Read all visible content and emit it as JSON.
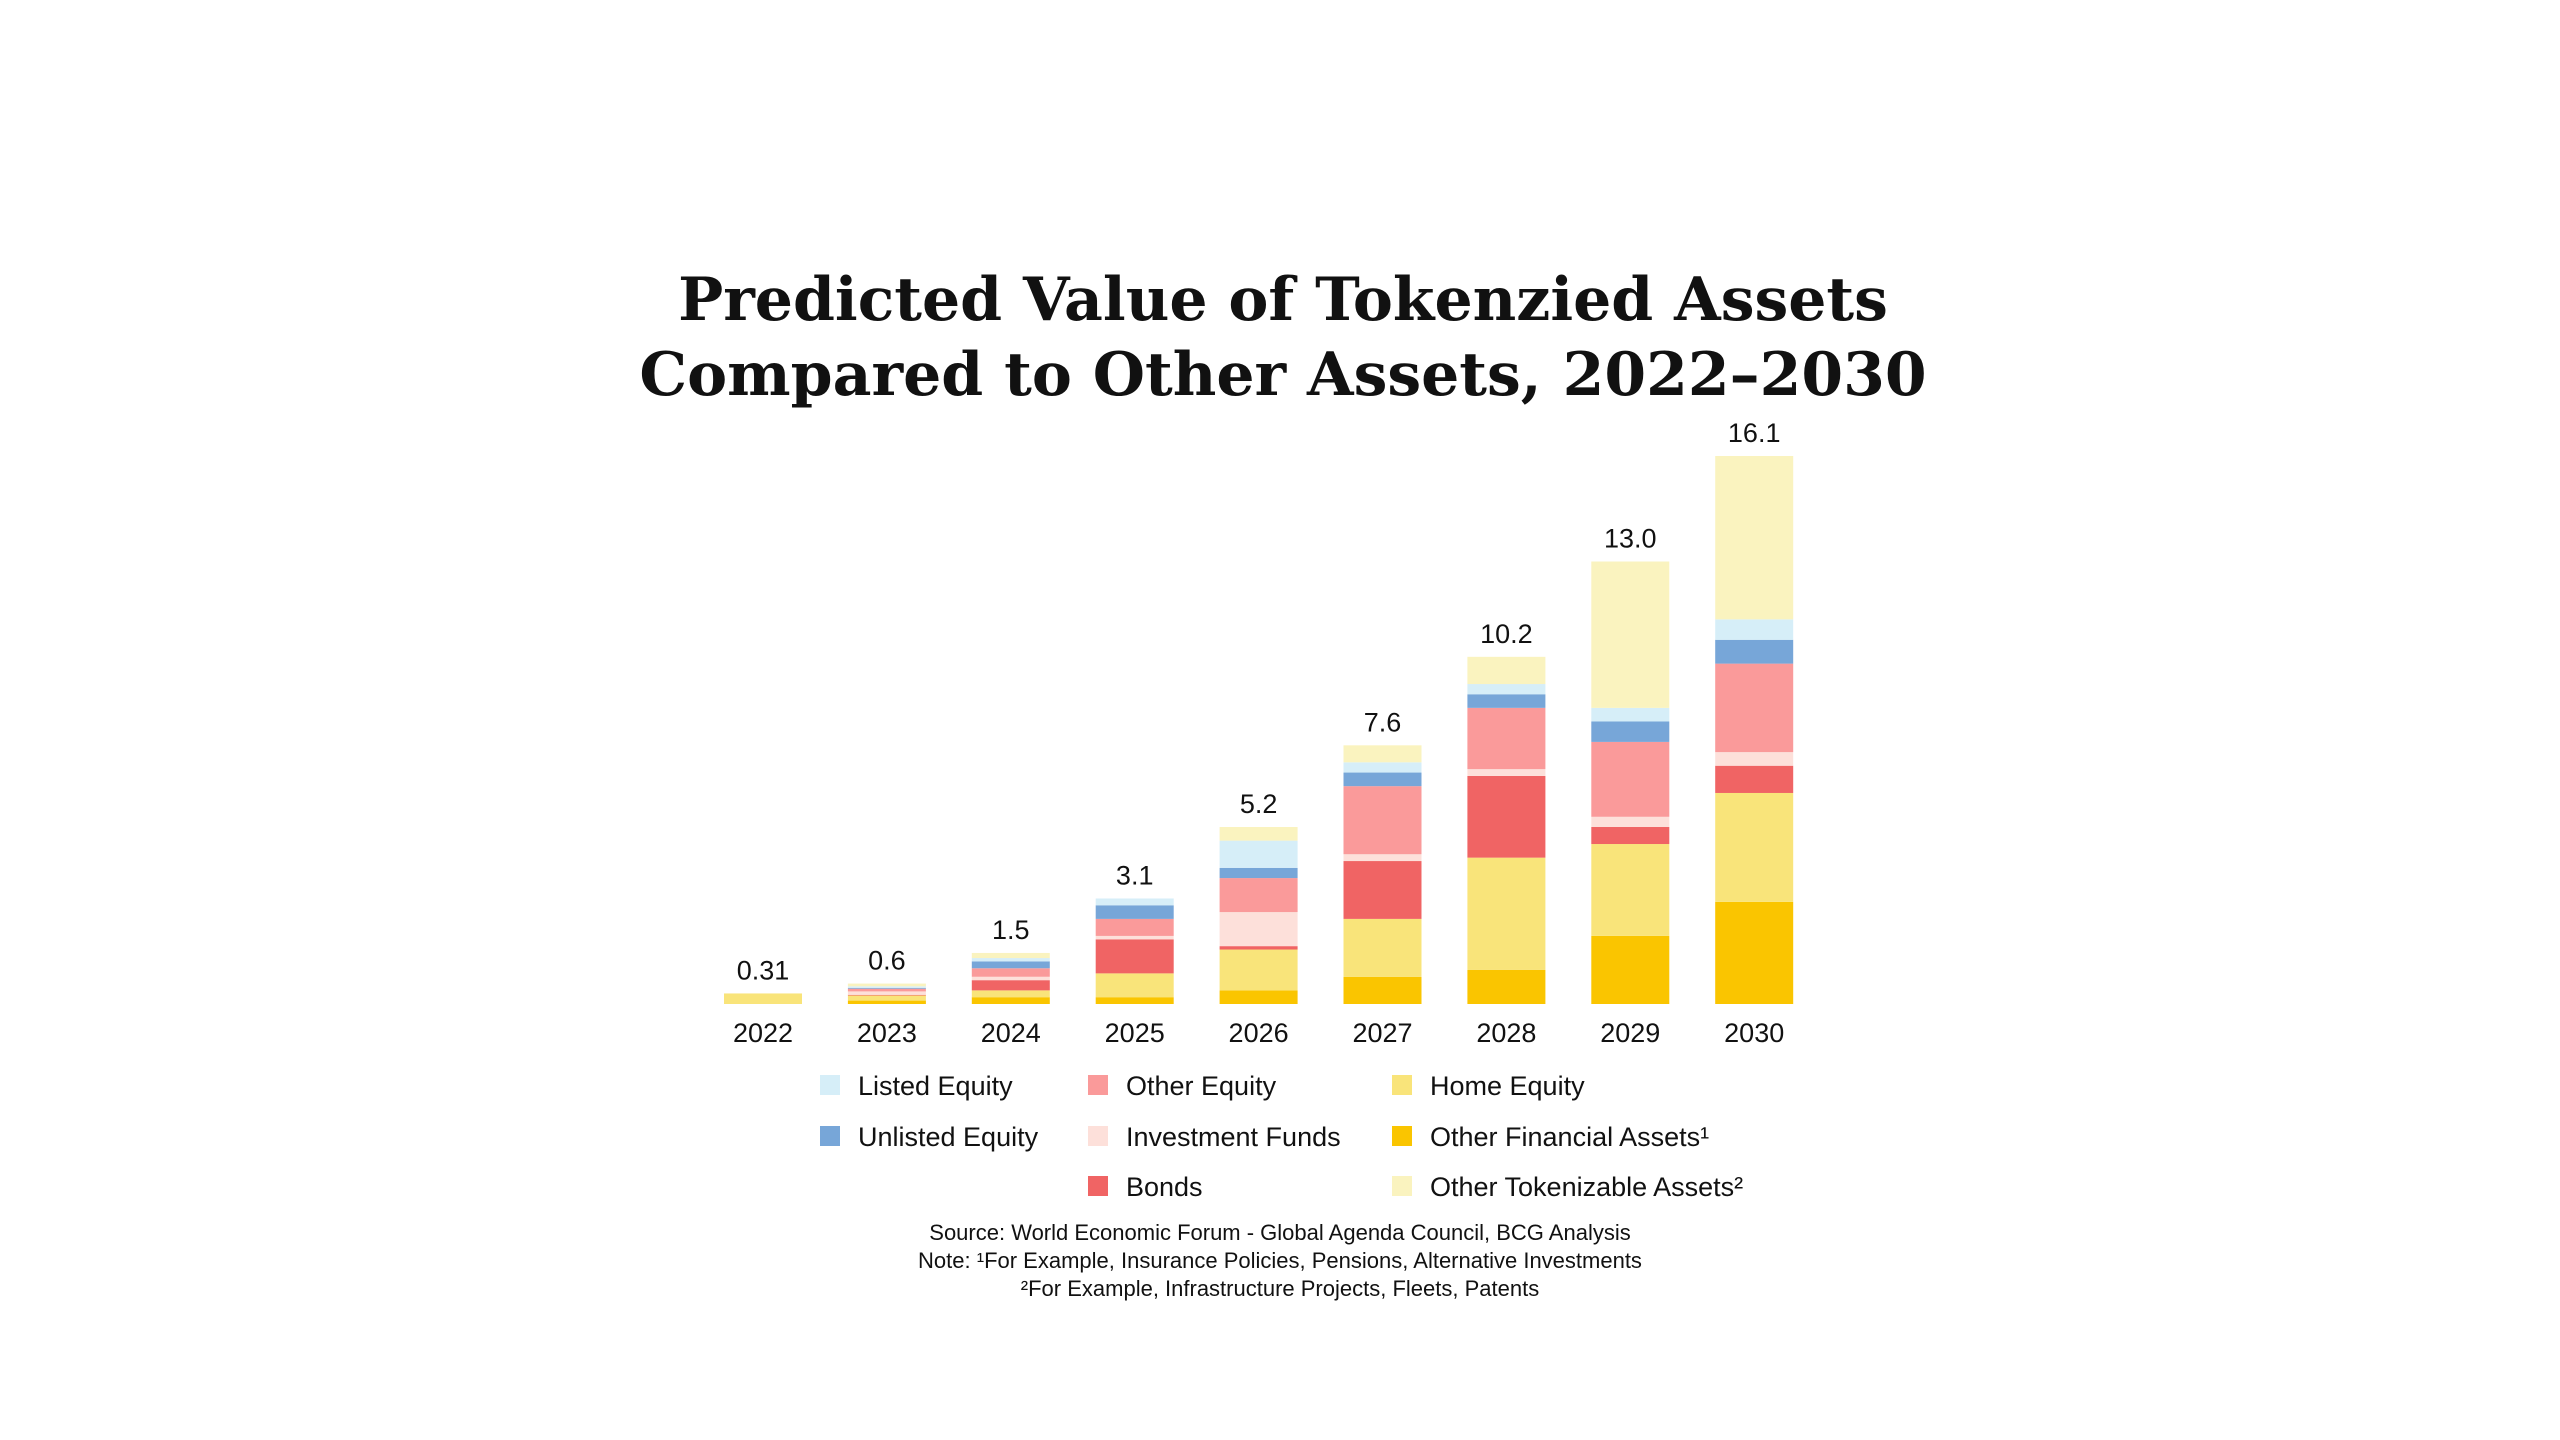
{
  "chart_data": {
    "type": "bar",
    "stacked": true,
    "title": "Predicted Value of Tokenzied Assets Compared to Other Assets, 2022–2030",
    "title_lines": [
      "Predicted Value of Tokenzied Assets",
      "Compared to Other Assets, 2022–2030"
    ],
    "categories": [
      "2022",
      "2023",
      "2024",
      "2025",
      "2026",
      "2027",
      "2028",
      "2029",
      "2030"
    ],
    "totals": [
      "0.31",
      "0.6",
      "1.5",
      "3.1",
      "5.2",
      "7.6",
      "10.2",
      "13.0",
      "16.1"
    ],
    "ylim": [
      0,
      16.1
    ],
    "grid": false,
    "legend_position": "bottom",
    "series": [
      {
        "name": "Other Financial Assets¹",
        "color": "#fac500",
        "values": [
          0,
          0.1,
          0.2,
          0.2,
          0.4,
          0.8,
          1.0,
          2.0,
          3.0
        ]
      },
      {
        "name": "Home Equity",
        "color": "#f9e47a",
        "values": [
          0.31,
          0.15,
          0.2,
          0.7,
          1.2,
          1.7,
          3.3,
          2.7,
          3.2
        ]
      },
      {
        "name": "Bonds",
        "color": "#f06464",
        "values": [
          0,
          0.02,
          0.3,
          1.0,
          0.1,
          1.7,
          2.4,
          0.5,
          0.8
        ]
      },
      {
        "name": "Investment Funds",
        "color": "#fde0da",
        "values": [
          0,
          0.1,
          0.1,
          0.1,
          1.0,
          0.2,
          0.2,
          0.3,
          0.4
        ]
      },
      {
        "name": "Other Equity",
        "color": "#fa9a9a",
        "values": [
          0,
          0.08,
          0.25,
          0.5,
          1.0,
          2.0,
          1.8,
          2.2,
          2.6
        ]
      },
      {
        "name": "Unlisted Equity",
        "color": "#77a6d8",
        "values": [
          0,
          0.02,
          0.2,
          0.4,
          0.3,
          0.4,
          0.4,
          0.6,
          0.7
        ]
      },
      {
        "name": "Listed Equity",
        "color": "#d6eef8",
        "values": [
          0,
          0.05,
          0.1,
          0.2,
          0.8,
          0.3,
          0.3,
          0.4,
          0.6
        ]
      },
      {
        "name": "Other Tokenizable Assets²",
        "color": "#faf3bf",
        "values": [
          0,
          0.08,
          0.15,
          0,
          0.4,
          0.5,
          0.8,
          4.3,
          4.8
        ]
      }
    ],
    "legend_order": [
      [
        "Listed Equity",
        "Unlisted Equity"
      ],
      [
        "Other Equity",
        "Investment Funds",
        "Bonds"
      ],
      [
        "Home Equity",
        "Other Financial Assets¹",
        "Other Tokenizable Assets²"
      ]
    ],
    "notes": [
      "Source: World Economic Forum - Global Agenda Council, BCG Analysis",
      "Note: ¹For Example, Insurance Policies, Pensions, Alternative Investments",
      "²For Example, Infrastructure Projects, Fleets, Patents"
    ]
  }
}
